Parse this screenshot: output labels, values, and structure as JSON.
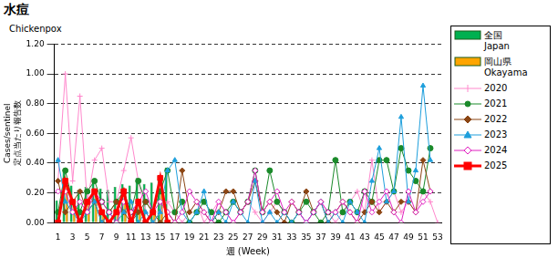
{
  "chart_data": {
    "type": "bar",
    "title": "水痘",
    "subtitle": "Chickenpox",
    "xlabel": "週 (Week)",
    "ylabel": [
      "Cases/sentinel",
      "定点当たり報告数"
    ],
    "categories": [
      1,
      null,
      3,
      null,
      5,
      null,
      7,
      null,
      9,
      null,
      11,
      null,
      13,
      null,
      15,
      null,
      17,
      null,
      19,
      null,
      21,
      null,
      23,
      null,
      25,
      null,
      27,
      null,
      29,
      null,
      31,
      null,
      33,
      null,
      35,
      null,
      37,
      null,
      39,
      null,
      41,
      null,
      43,
      null,
      45,
      null,
      47,
      null,
      49,
      null,
      51,
      null,
      53
    ],
    "ylim": [
      0,
      1.2
    ],
    "yticks": [
      {
        "value": 0,
        "label": "0.00"
      },
      {
        "value": 0.2,
        "label": "0.20"
      },
      {
        "value": 0.4,
        "label": "0.40"
      },
      {
        "value": 0.6,
        "label": "0.60"
      },
      {
        "value": 0.8,
        "label": "0.80"
      },
      {
        "value": 1.0,
        "label": "1.00"
      },
      {
        "value": 1.2,
        "label": "1.20"
      }
    ],
    "grid": true,
    "legend": "right",
    "series": [
      {
        "name": "全国 Japan",
        "type": "bar",
        "color": "#00b050",
        "values": [
          0.15,
          0.34,
          0.25,
          0.22,
          0.24,
          0.28,
          0.23,
          0.22,
          0.24,
          0.26,
          0.25,
          0.3,
          0.26,
          0.27,
          0.32,
          0.37,
          null,
          null,
          null,
          null,
          null,
          null,
          null,
          null,
          null,
          null,
          null,
          null,
          null,
          null,
          null,
          null,
          null,
          null,
          null,
          null,
          null,
          null,
          null,
          null,
          null,
          null,
          null,
          null,
          null,
          null,
          null,
          null,
          null,
          null,
          null,
          null,
          null
        ]
      },
      {
        "name": "岡山県 Okayama",
        "type": "bar",
        "color": "#ffa500",
        "values": [
          0.0,
          0.28,
          0.14,
          0.0,
          0.14,
          0.21,
          0.07,
          0.0,
          0.07,
          0.21,
          0.0,
          0.14,
          0.0,
          0.07,
          0.3,
          0.0,
          null,
          null,
          null,
          null,
          null,
          null,
          null,
          null,
          null,
          null,
          null,
          null,
          null,
          null,
          null,
          null,
          null,
          null,
          null,
          null,
          null,
          null,
          null,
          null,
          null,
          null,
          null,
          null,
          null,
          null,
          null,
          null,
          null,
          null,
          null,
          null,
          null
        ]
      },
      {
        "name": "2020",
        "type": "line",
        "color": "#ff88cc",
        "marker": "plus",
        "values": [
          0.28,
          1.0,
          0.28,
          0.85,
          0.14,
          0.42,
          0.5,
          0.14,
          0.14,
          0.35,
          0.57,
          0.28,
          0.07,
          0.0,
          0.07,
          0.14,
          0.07,
          0.0,
          0.07,
          0.14,
          0.0,
          0.07,
          0.14,
          0.07,
          0.0,
          0.07,
          0.14,
          0.07,
          0.0,
          0.07,
          0.14,
          0.07,
          0.0,
          0.07,
          0.0,
          0.07,
          0.14,
          0.07,
          0.0,
          0.07,
          0.14,
          0.21,
          0.07,
          0.42,
          0.07,
          0.14,
          0.21,
          0.07,
          0.14,
          0.07,
          0.21,
          0.14,
          0.0
        ]
      },
      {
        "name": "2021",
        "type": "line",
        "color": "#1a8a2a",
        "marker": "circle",
        "values": [
          0.07,
          0.35,
          0.14,
          0.07,
          0.21,
          0.28,
          0.14,
          0.07,
          0.14,
          0.21,
          0.07,
          0.28,
          0.14,
          0.07,
          0.21,
          0.35,
          0.07,
          0.14,
          0.0,
          0.07,
          0.14,
          0.07,
          0.0,
          0.07,
          0.14,
          0.07,
          0.14,
          0.35,
          0.07,
          0.35,
          0.14,
          0.07,
          0.0,
          0.07,
          0.14,
          0.07,
          0.0,
          0.07,
          0.42,
          0.07,
          0.14,
          0.07,
          0.21,
          0.14,
          0.42,
          0.42,
          0.21,
          0.5,
          0.35,
          0.28,
          0.21,
          0.5,
          null
        ]
      },
      {
        "name": "2022",
        "type": "line",
        "color": "#8b4513",
        "marker": "diamond",
        "values": [
          0.28,
          0.07,
          0.14,
          0.21,
          0.07,
          0.14,
          0.0,
          0.07,
          0.14,
          0.07,
          0.0,
          0.07,
          0.14,
          0.07,
          0.0,
          0.07,
          0.0,
          0.35,
          0.07,
          0.14,
          0.07,
          0.0,
          0.07,
          0.21,
          0.21,
          0.07,
          0.14,
          0.28,
          0.07,
          0.14,
          0.07,
          0.0,
          0.14,
          0.07,
          0.21,
          0.07,
          0.14,
          0.0,
          0.07,
          0.14,
          0.07,
          0.0,
          0.07,
          0.14,
          0.07,
          0.14,
          0.07,
          0.14,
          0.14,
          0.07,
          0.42,
          0.21,
          null
        ]
      },
      {
        "name": "2023",
        "type": "line",
        "color": "#1e9fdc",
        "marker": "triangle",
        "values": [
          0.42,
          0.14,
          0.07,
          0.0,
          0.07,
          0.14,
          0.0,
          0.07,
          0.0,
          0.07,
          0.14,
          0.0,
          0.07,
          0.0,
          0.07,
          0.35,
          0.42,
          0.07,
          0.0,
          0.07,
          0.21,
          0.0,
          0.07,
          0.0,
          0.14,
          0.07,
          0.0,
          0.28,
          0.0,
          0.07,
          0.0,
          0.07,
          0.0,
          0.07,
          0.0,
          0.07,
          0.14,
          0.0,
          0.07,
          0.0,
          0.14,
          0.07,
          0.0,
          0.28,
          0.5,
          0.14,
          0.21,
          0.71,
          0.14,
          0.35,
          0.92,
          0.42,
          null
        ]
      },
      {
        "name": "2024",
        "type": "line",
        "color": "#e020c0",
        "marker": "open_diamond",
        "values": [
          0.21,
          0.21,
          0.07,
          0.14,
          0.07,
          0.21,
          0.14,
          0.07,
          0.0,
          0.14,
          0.07,
          0.14,
          0.21,
          0.07,
          0.14,
          0.07,
          0.0,
          0.07,
          0.21,
          0.14,
          0.07,
          0.0,
          0.14,
          0.07,
          0.0,
          0.07,
          0.14,
          0.35,
          0.07,
          0.14,
          0.21,
          0.07,
          0.14,
          0.07,
          0.0,
          0.07,
          0.14,
          0.07,
          0.07,
          0.14,
          0.07,
          0.0,
          0.21,
          0.07,
          0.14,
          0.21,
          0.07,
          0.0,
          0.21,
          0.07,
          0.14,
          0.21,
          null
        ]
      },
      {
        "name": "2025",
        "type": "line",
        "color": "#ff0000",
        "marker": "square",
        "values": [
          0.0,
          0.28,
          0.14,
          0.0,
          0.14,
          0.21,
          0.07,
          0.0,
          0.07,
          0.21,
          0.0,
          0.14,
          0.0,
          0.07,
          0.3,
          0.0,
          null,
          null,
          null,
          null,
          null,
          null,
          null,
          null,
          null,
          null,
          null,
          null,
          null,
          null,
          null,
          null,
          null,
          null,
          null,
          null,
          null,
          null,
          null,
          null,
          null,
          null,
          null,
          null,
          null,
          null,
          null,
          null,
          null,
          null,
          null,
          null,
          null
        ]
      }
    ]
  }
}
